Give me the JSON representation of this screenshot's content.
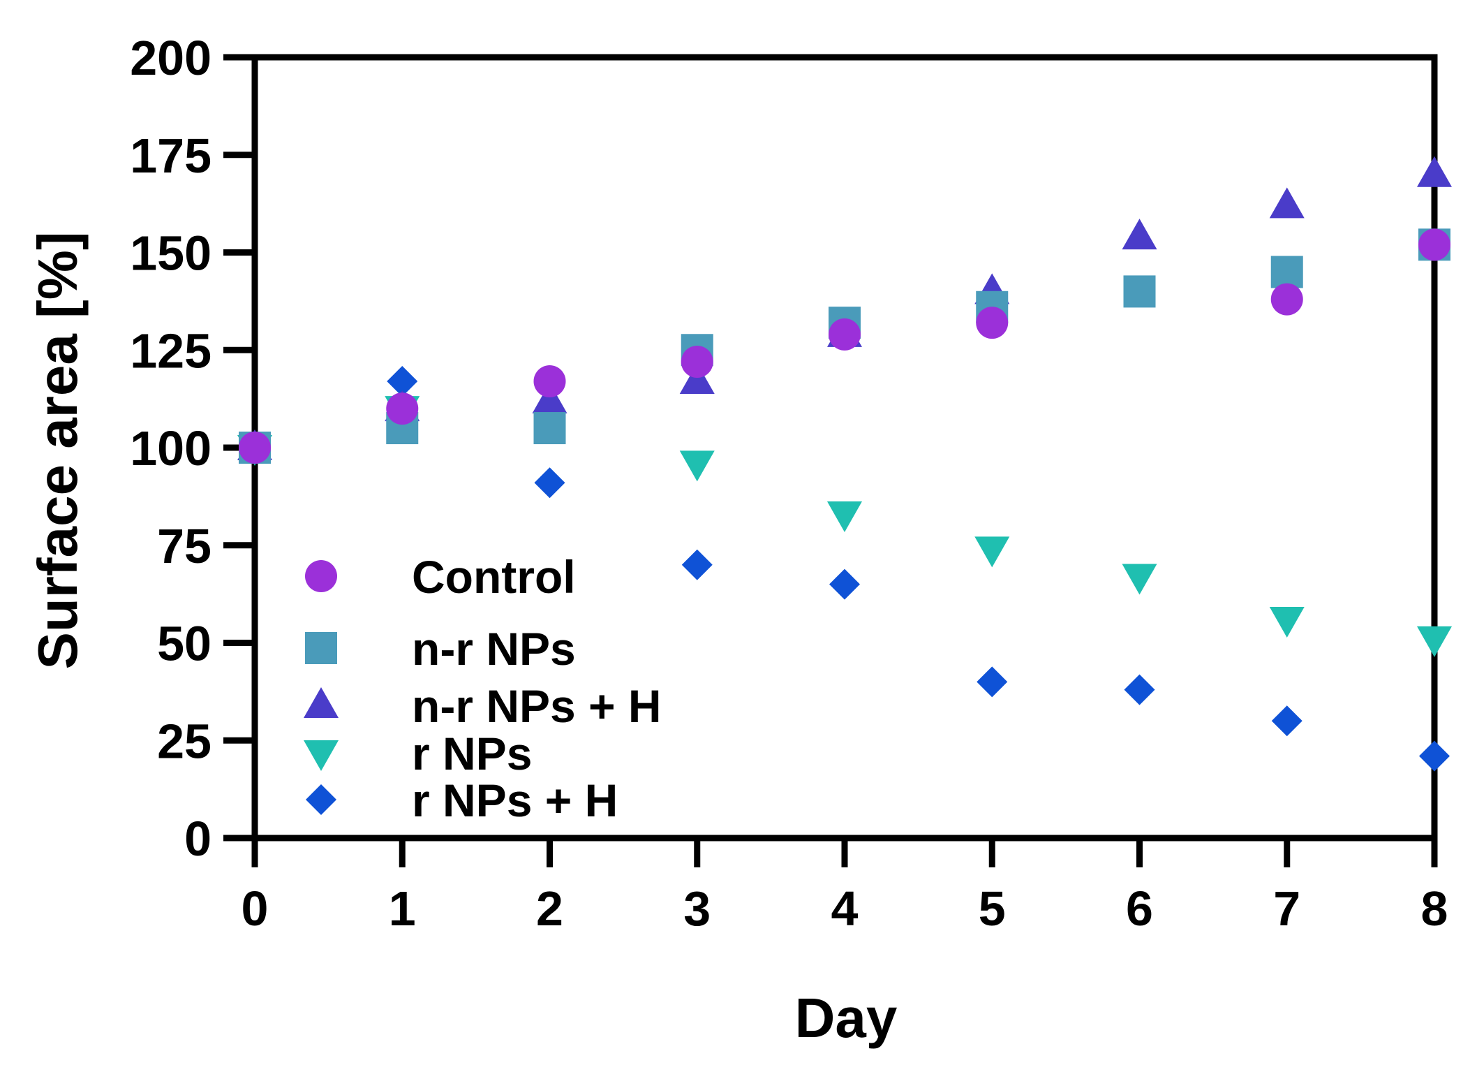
{
  "chart_data": {
    "type": "scatter",
    "xlabel": "Day",
    "ylabel": "Surface area [%]",
    "xlim": [
      0,
      8
    ],
    "ylim": [
      0,
      200
    ],
    "xticks": [
      "0",
      "1",
      "2",
      "3",
      "4",
      "5",
      "6",
      "7",
      "8"
    ],
    "yticks": [
      "0",
      "25",
      "50",
      "75",
      "100",
      "125",
      "150",
      "175",
      "200"
    ],
    "x": [
      0,
      1,
      2,
      3,
      4,
      5,
      6,
      7,
      8
    ],
    "legend_position": "bottom-left",
    "series": [
      {
        "name": "Control",
        "marker": "circle",
        "color": "#9b30d9",
        "values": [
          100,
          110,
          117,
          122,
          129,
          132,
          null,
          138,
          152
        ]
      },
      {
        "name": "n-r NPs",
        "marker": "square",
        "color": "#4a9bba",
        "values": [
          100,
          105,
          105,
          125,
          132,
          136,
          140,
          145,
          152
        ]
      },
      {
        "name": "n-r NPs + H",
        "marker": "triangle-up",
        "color": "#4a3cc9",
        "values": [
          100,
          110,
          112,
          117,
          129,
          140,
          154,
          162,
          170
        ]
      },
      {
        "name": "r NPs",
        "marker": "triangle-down",
        "color": "#1fbfb0",
        "values": [
          100,
          110,
          null,
          96,
          83,
          74,
          67,
          56,
          51
        ]
      },
      {
        "name": "r NPs + H",
        "marker": "diamond",
        "color": "#0f52d6",
        "values": [
          100,
          117,
          91,
          70,
          65,
          40,
          38,
          30,
          21
        ]
      }
    ]
  }
}
